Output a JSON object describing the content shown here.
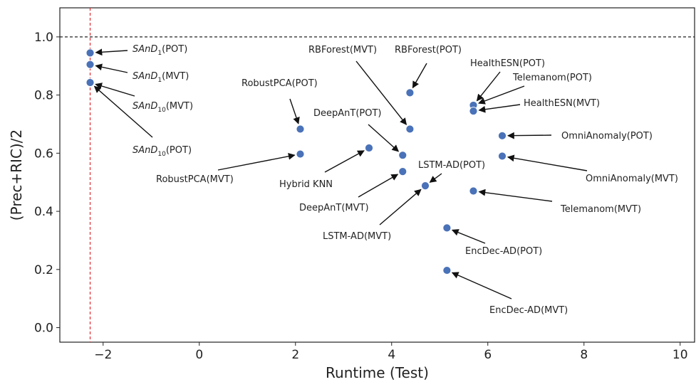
{
  "chart_data": {
    "type": "scatter",
    "xlabel": "Runtime (Test)",
    "ylabel": "(Prec+RIC)/2",
    "xlim": [
      -2.9,
      10.3
    ],
    "ylim": [
      -0.05,
      1.1
    ],
    "xticks": [
      -2,
      0,
      2,
      4,
      6,
      8,
      10
    ],
    "xtick_labels": [
      "−2",
      "0",
      "2",
      "4",
      "6",
      "8",
      "10"
    ],
    "yticks": [
      0.0,
      0.2,
      0.4,
      0.6,
      0.8,
      1.0
    ],
    "ytick_labels": [
      "0.0",
      "0.2",
      "0.4",
      "0.6",
      "0.8",
      "1.0"
    ],
    "reference_lines": [
      {
        "orientation": "horizontal",
        "value": 1.0,
        "style": "dashed",
        "color": "#222222"
      },
      {
        "orientation": "vertical",
        "value": -2.27,
        "style": "dashed",
        "color": "#e0282e"
      }
    ],
    "point_color": "#4a72b8",
    "points": [
      {
        "x": -2.27,
        "y": 0.945,
        "label": "SAnD",
        "sub": "1",
        "suffix": "(POT)"
      },
      {
        "x": -2.27,
        "y": 0.905,
        "label": "SAnD",
        "sub": "1",
        "suffix": "(MVT)"
      },
      {
        "x": -2.27,
        "y": 0.843,
        "label": "SAnD",
        "sub": "10",
        "suffix": "(MVT)"
      },
      {
        "x": -2.27,
        "y": 0.843,
        "label": "SAnD",
        "sub": "10",
        "suffix": "(POT)"
      },
      {
        "x": 2.1,
        "y": 0.683,
        "label": "RobustPCA(POT)"
      },
      {
        "x": 2.1,
        "y": 0.597,
        "label": "RobustPCA(MVT)"
      },
      {
        "x": 3.53,
        "y": 0.618,
        "label": "Hybrid KNN"
      },
      {
        "x": 4.23,
        "y": 0.593,
        "label": "DeepAnT(POT)"
      },
      {
        "x": 4.23,
        "y": 0.537,
        "label": "DeepAnT(MVT)"
      },
      {
        "x": 4.38,
        "y": 0.683,
        "label": "RBForest(MVT)"
      },
      {
        "x": 4.38,
        "y": 0.808,
        "label": "RBForest(POT)"
      },
      {
        "x": 4.7,
        "y": 0.488,
        "label": "LSTM-AD(POT)"
      },
      {
        "x": 4.7,
        "y": 0.488,
        "label": "LSTM-AD(MVT)"
      },
      {
        "x": 5.15,
        "y": 0.343,
        "label": "EncDec-AD(POT)"
      },
      {
        "x": 5.15,
        "y": 0.197,
        "label": "EncDec-AD(MVT)"
      },
      {
        "x": 5.7,
        "y": 0.765,
        "label": "HealthESN(POT)"
      },
      {
        "x": 5.7,
        "y": 0.745,
        "label": "HealthESN(MVT)"
      },
      {
        "x": 5.7,
        "y": 0.47,
        "label": "Telemanom(MVT)"
      },
      {
        "x": 6.3,
        "y": 0.66,
        "label": "OmniAnomaly(POT)"
      },
      {
        "x": 6.3,
        "y": 0.59,
        "label": "OmniAnomaly(MVT)"
      }
    ],
    "extra_points": [
      {
        "x": 5.7,
        "y": 0.765,
        "label": "Telemanom(POT)"
      }
    ]
  }
}
